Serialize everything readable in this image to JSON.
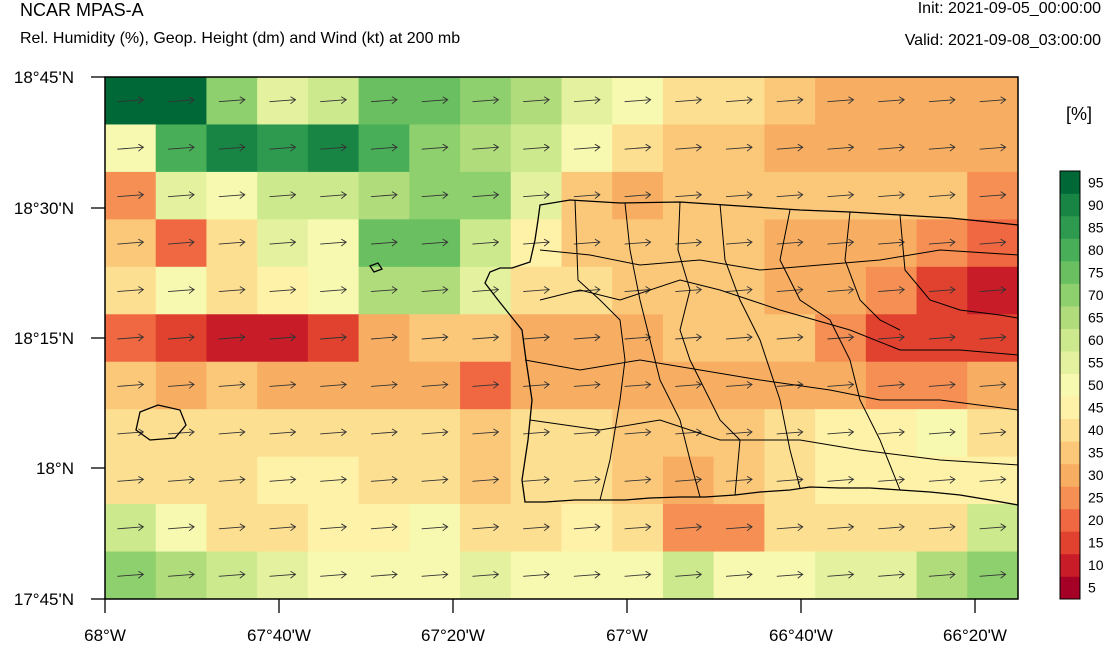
{
  "header": {
    "app_title": "NCAR MPAS-A",
    "subtitle": "Rel. Humidity (%), Geop. Height (dm) and Wind (kt) at 200 mb",
    "init": "Init: 2021-09-05_00:00:00",
    "valid": "Valid: 2021-09-08_03:00:00"
  },
  "colorbar": {
    "units": "[%]",
    "labels": [
      "5",
      "10",
      "15",
      "20",
      "25",
      "30",
      "35",
      "40",
      "45",
      "50",
      "55",
      "60",
      "65",
      "70",
      "75",
      "80",
      "85",
      "90",
      "95"
    ],
    "colors": [
      "#a50026",
      "#c81d28",
      "#e0422f",
      "#f06842",
      "#f58f53",
      "#f8ae62",
      "#fbc87a",
      "#fddf91",
      "#fef1a8",
      "#f7f9b0",
      "#e4f2a0",
      "#cce98d",
      "#b0dc7b",
      "#8ecf6e",
      "#6ac060",
      "#48ae57",
      "#2e9a4f",
      "#188544",
      "#006837"
    ]
  },
  "map": {
    "y_ticks": [
      "18°45'N",
      "18°30'N",
      "18°15'N",
      "18°N",
      "17°45'N"
    ],
    "x_ticks": [
      "68°W",
      "67°40'W",
      "67°20'W",
      "67°W",
      "66°40'W",
      "66°20'W"
    ],
    "grid_rows": [
      [
        18,
        18,
        13,
        10,
        11,
        14,
        14,
        13,
        12,
        10,
        9,
        7,
        7,
        6,
        5,
        5,
        5,
        5
      ],
      [
        9,
        15,
        17,
        16,
        17,
        15,
        13,
        12,
        11,
        9,
        7,
        6,
        6,
        5,
        5,
        5,
        5,
        5
      ],
      [
        4,
        10,
        9,
        11,
        11,
        12,
        13,
        13,
        10,
        6,
        5,
        6,
        6,
        6,
        6,
        6,
        6,
        4
      ],
      [
        6,
        3,
        7,
        10,
        9,
        14,
        14,
        11,
        8,
        6,
        6,
        6,
        6,
        5,
        5,
        5,
        4,
        3
      ],
      [
        7,
        9,
        7,
        8,
        9,
        12,
        12,
        10,
        7,
        7,
        6,
        6,
        6,
        5,
        5,
        4,
        2,
        1
      ],
      [
        3,
        2,
        1,
        1,
        2,
        5,
        6,
        6,
        5,
        5,
        5,
        6,
        6,
        6,
        4,
        2,
        2,
        2
      ],
      [
        6,
        5,
        6,
        5,
        5,
        5,
        5,
        3,
        5,
        5,
        5,
        5,
        5,
        5,
        5,
        4,
        4,
        5
      ],
      [
        7,
        7,
        7,
        7,
        7,
        7,
        7,
        6,
        7,
        7,
        6,
        6,
        6,
        7,
        8,
        8,
        9,
        7
      ],
      [
        7,
        7,
        7,
        8,
        8,
        7,
        7,
        6,
        7,
        7,
        6,
        5,
        6,
        7,
        8,
        8,
        8,
        8
      ],
      [
        11,
        9,
        7,
        7,
        8,
        8,
        9,
        7,
        7,
        8,
        7,
        4,
        4,
        7,
        7,
        7,
        7,
        11
      ],
      [
        13,
        12,
        11,
        10,
        9,
        9,
        9,
        10,
        9,
        9,
        9,
        11,
        9,
        9,
        10,
        10,
        12,
        13
      ]
    ]
  }
}
